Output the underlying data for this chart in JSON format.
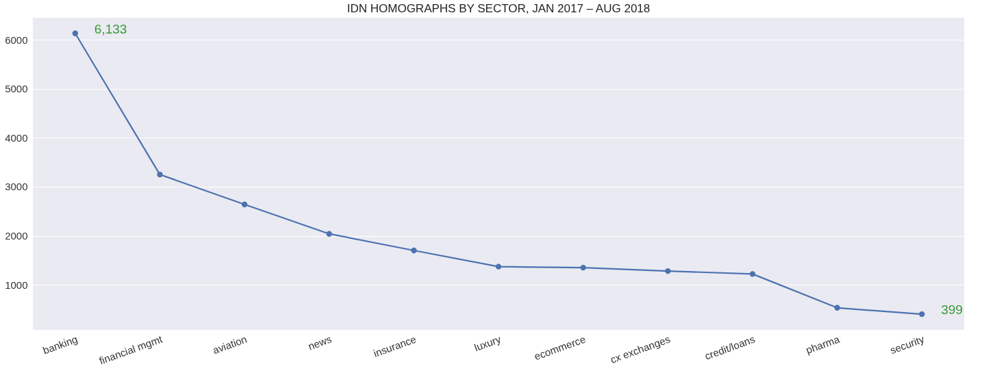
{
  "chart_data": {
    "type": "line",
    "title": "IDN HOMOGRAPHS BY SECTOR, JAN 2017 – AUG 2018",
    "categories": [
      "banking",
      "financial mgmt",
      "aviation",
      "news",
      "insurance",
      "luxury",
      "ecommerce",
      "cx exchanges",
      "credit/loans",
      "pharma",
      "security"
    ],
    "series": [
      {
        "color": "#4c72b0",
        "values": [
          6133,
          3250,
          2640,
          2040,
          1700,
          1370,
          1350,
          1280,
          1220,
          530,
          399
        ],
        "value_labels": [
          "6,133",
          null,
          null,
          null,
          null,
          null,
          null,
          null,
          null,
          null,
          "399"
        ]
      }
    ],
    "ylim": [
      80,
      6450
    ],
    "yticks": [
      1000,
      2000,
      3000,
      4000,
      5000,
      6000
    ],
    "grid": "y",
    "marker": "circle",
    "line_style": "solid"
  }
}
